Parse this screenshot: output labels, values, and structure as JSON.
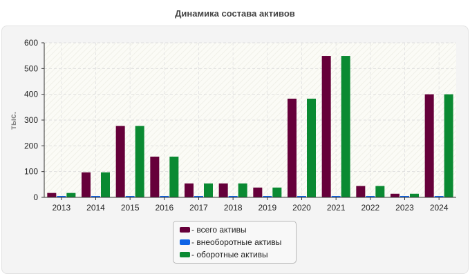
{
  "chart_data": {
    "type": "bar",
    "title": "Динамика состава активов",
    "ylabel": "тыс.",
    "xlabel": "",
    "ylim": [
      0,
      600
    ],
    "yticks": [
      0,
      100,
      200,
      300,
      400,
      500,
      600
    ],
    "grid": true,
    "legend_position": "bottom",
    "categories": [
      "2013",
      "2014",
      "2015",
      "2016",
      "2017",
      "2018",
      "2019",
      "2020",
      "2021",
      "2022",
      "2023",
      "2024"
    ],
    "series": [
      {
        "name": "- всего активы",
        "color": "#66003a",
        "values": [
          17,
          97,
          277,
          158,
          54,
          54,
          38,
          383,
          549,
          44,
          14,
          400
        ]
      },
      {
        "name": "- внеоборотные активы",
        "color": "#0f64e6",
        "values": [
          0,
          0,
          0,
          0,
          0,
          0,
          0,
          0,
          0,
          0,
          0,
          0
        ]
      },
      {
        "name": "- оборотные активы",
        "color": "#0a8a32",
        "values": [
          17,
          97,
          277,
          158,
          54,
          54,
          38,
          383,
          549,
          44,
          14,
          400
        ]
      }
    ]
  }
}
